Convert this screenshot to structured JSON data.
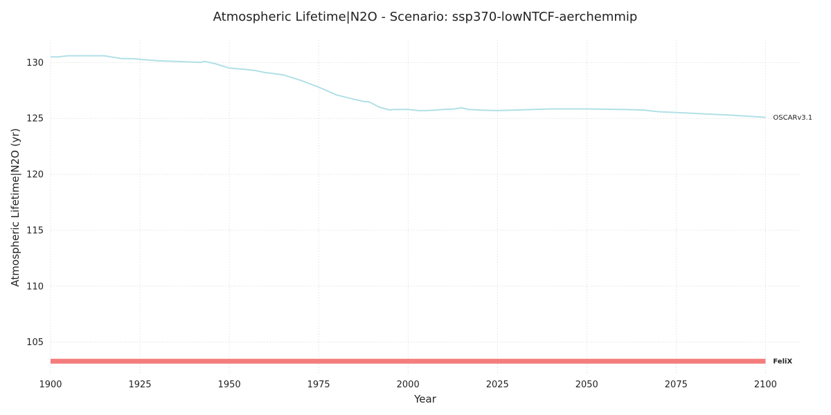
{
  "chart_data": {
    "type": "line",
    "title": "Atmospheric Lifetime|N2O - Scenario: ssp370-lowNTCF-aerchemmip",
    "xlabel": "Year",
    "ylabel": "Atmospheric Lifetime|N2O (yr)",
    "xlim": [
      1900,
      2110
    ],
    "ylim": [
      102.2,
      132
    ],
    "xticks": [
      1900,
      1925,
      1950,
      1975,
      2000,
      2025,
      2050,
      2075,
      2100
    ],
    "yticks": [
      105,
      110,
      115,
      120,
      125,
      130
    ],
    "grid": true,
    "legend": "labels at line ends (right)",
    "series": [
      {
        "name": "OSCARv3.1",
        "color": "#b0e0e6",
        "label_bold": false,
        "line_width": 2,
        "x": [
          1900,
          1902,
          1905,
          1910,
          1915,
          1917,
          1920,
          1923,
          1926,
          1930,
          1935,
          1942,
          1943,
          1946,
          1950,
          1954,
          1957,
          1960,
          1965,
          1970,
          1975,
          1980,
          1985,
          1988,
          1989,
          1992,
          1995,
          1996,
          1997,
          2000,
          2003,
          2005,
          2008,
          2010,
          2013,
          2015,
          2017,
          2020,
          2025,
          2030,
          2040,
          2050,
          2060,
          2066,
          2070,
          2080,
          2090,
          2100
        ],
        "y": [
          130.5,
          130.5,
          130.6,
          130.6,
          130.6,
          130.5,
          130.35,
          130.35,
          130.25,
          130.15,
          130.1,
          130.0,
          130.1,
          129.9,
          129.5,
          129.4,
          129.3,
          129.1,
          128.9,
          128.4,
          127.8,
          127.1,
          126.7,
          126.5,
          126.5,
          126.0,
          125.75,
          125.8,
          125.8,
          125.8,
          125.7,
          125.7,
          125.75,
          125.8,
          125.85,
          125.95,
          125.8,
          125.75,
          125.7,
          125.75,
          125.85,
          125.85,
          125.8,
          125.75,
          125.6,
          125.45,
          125.3,
          125.1
        ]
      },
      {
        "name": "FeliX",
        "color": "#f47c7c",
        "label_bold": true,
        "line_width": 7,
        "x": [
          1900,
          2100
        ],
        "y": [
          103.3,
          103.3
        ]
      }
    ]
  }
}
